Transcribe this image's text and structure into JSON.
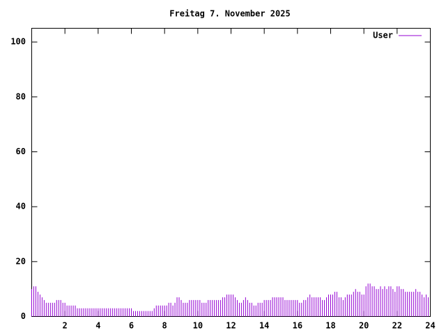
{
  "chart_data": {
    "type": "impulse",
    "title": "Freitag 7. November 2025",
    "x": [
      0,
      0.125,
      0.25,
      0.375,
      0.5,
      0.625,
      0.75,
      0.875,
      1,
      1.125,
      1.25,
      1.375,
      1.5,
      1.625,
      1.75,
      1.875,
      2,
      2.125,
      2.25,
      2.375,
      2.5,
      2.625,
      2.75,
      2.875,
      3,
      3.125,
      3.25,
      3.375,
      3.5,
      3.625,
      3.75,
      3.875,
      4,
      4.125,
      4.25,
      4.375,
      4.5,
      4.625,
      4.75,
      4.875,
      5,
      5.125,
      5.25,
      5.375,
      5.5,
      5.625,
      5.75,
      5.875,
      6,
      6.125,
      6.25,
      6.375,
      6.5,
      6.625,
      6.75,
      6.875,
      7,
      7.125,
      7.25,
      7.375,
      7.5,
      7.625,
      7.75,
      7.875,
      8,
      8.125,
      8.25,
      8.375,
      8.5,
      8.625,
      8.75,
      8.875,
      9,
      9.125,
      9.25,
      9.375,
      9.5,
      9.625,
      9.75,
      9.875,
      10,
      10.125,
      10.25,
      10.375,
      10.5,
      10.625,
      10.75,
      10.875,
      11,
      11.125,
      11.25,
      11.375,
      11.5,
      11.625,
      11.75,
      11.875,
      12,
      12.125,
      12.25,
      12.375,
      12.5,
      12.625,
      12.75,
      12.875,
      13,
      13.125,
      13.25,
      13.375,
      13.5,
      13.625,
      13.75,
      13.875,
      14,
      14.125,
      14.25,
      14.375,
      14.5,
      14.625,
      14.75,
      14.875,
      15,
      15.125,
      15.25,
      15.375,
      15.5,
      15.625,
      15.75,
      15.875,
      16,
      16.125,
      16.25,
      16.375,
      16.5,
      16.625,
      16.75,
      16.875,
      17,
      17.125,
      17.25,
      17.375,
      17.5,
      17.625,
      17.75,
      17.875,
      18,
      18.125,
      18.25,
      18.375,
      18.5,
      18.625,
      18.75,
      18.875,
      19,
      19.125,
      19.25,
      19.375,
      19.5,
      19.625,
      19.75,
      19.875,
      20,
      20.125,
      20.25,
      20.375,
      20.5,
      20.625,
      20.75,
      20.875,
      21,
      21.125,
      21.25,
      21.375,
      21.5,
      21.625,
      21.75,
      21.875,
      22,
      22.125,
      22.25,
      22.375,
      22.5,
      22.625,
      22.75,
      22.875,
      23,
      23.125,
      23.25,
      23.375,
      23.5,
      23.625,
      23.75,
      23.875
    ],
    "series": [
      {
        "name": "User",
        "color": "#9400d3",
        "values": [
          10,
          11,
          11,
          9,
          8,
          7,
          6,
          5,
          5,
          5,
          5,
          5,
          6,
          6,
          6,
          5,
          5,
          4,
          4,
          4,
          4,
          4,
          3,
          3,
          3,
          3,
          3,
          3,
          3,
          3,
          3,
          3,
          3,
          3,
          3,
          3,
          3,
          3,
          3,
          3,
          3,
          3,
          3,
          3,
          3,
          3,
          3,
          3,
          3,
          2,
          2,
          2,
          2,
          2,
          2,
          2,
          2,
          2,
          2,
          3,
          4,
          4,
          4,
          4,
          4,
          4,
          5,
          5,
          4,
          5,
          7,
          7,
          6,
          5,
          5,
          5,
          6,
          6,
          6,
          6,
          6,
          6,
          5,
          5,
          5,
          6,
          6,
          6,
          6,
          6,
          6,
          6,
          7,
          7,
          8,
          8,
          8,
          8,
          7,
          6,
          5,
          5,
          6,
          7,
          6,
          5,
          5,
          4,
          4,
          5,
          5,
          5,
          6,
          6,
          6,
          6,
          7,
          7,
          7,
          7,
          7,
          7,
          6,
          6,
          6,
          6,
          6,
          6,
          6,
          5,
          5,
          6,
          6,
          7,
          8,
          7,
          7,
          7,
          7,
          7,
          6,
          6,
          7,
          8,
          8,
          8,
          9,
          9,
          7,
          7,
          6,
          7,
          8,
          8,
          8,
          9,
          10,
          9,
          9,
          8,
          8,
          11,
          12,
          12,
          11,
          11,
          10,
          10,
          11,
          10,
          11,
          10,
          11,
          11,
          10,
          9,
          11,
          11,
          10,
          10,
          9,
          9,
          9,
          9,
          9,
          10,
          9,
          9,
          8,
          7,
          8,
          7
        ]
      }
    ],
    "xlim": [
      0,
      24
    ],
    "xticks": [
      2,
      4,
      6,
      8,
      10,
      12,
      14,
      16,
      18,
      20,
      22,
      24
    ],
    "ylim": [
      0,
      105
    ],
    "yticks": [
      0,
      20,
      40,
      60,
      80,
      100
    ],
    "legend": "top-right"
  }
}
